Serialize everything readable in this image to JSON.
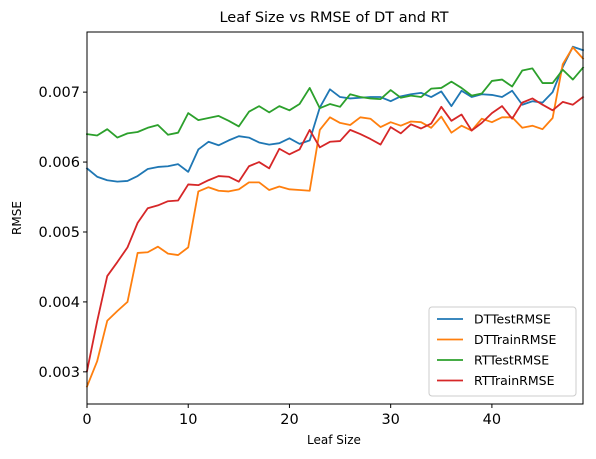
{
  "chart_data": {
    "type": "line",
    "title": "Leaf Size vs RMSE of DT and RT",
    "xlabel": "Leaf Size",
    "ylabel": "RMSE",
    "xlim": [
      0,
      49
    ],
    "ylim": [
      0.00254,
      0.00786
    ],
    "xticks": [
      0,
      10,
      20,
      30,
      40
    ],
    "yticks": [
      0.003,
      0.004,
      0.005,
      0.006,
      0.007
    ],
    "grid": false,
    "legend_position": "lower right",
    "series": [
      {
        "name": "DTTestRMSE",
        "color": "#1f77b4",
        "values": [
          0.00591,
          0.00579,
          0.00574,
          0.00572,
          0.00573,
          0.0058,
          0.0059,
          0.00593,
          0.00594,
          0.00597,
          0.00586,
          0.00618,
          0.00629,
          0.00624,
          0.00631,
          0.00637,
          0.00635,
          0.00628,
          0.00625,
          0.00627,
          0.00634,
          0.00626,
          0.00631,
          0.00678,
          0.00704,
          0.00693,
          0.00691,
          0.00692,
          0.00693,
          0.00693,
          0.00687,
          0.00694,
          0.00697,
          0.00699,
          0.00693,
          0.00701,
          0.0068,
          0.00702,
          0.00693,
          0.00697,
          0.00696,
          0.00693,
          0.00702,
          0.00682,
          0.00687,
          0.00685,
          0.007,
          0.00736,
          0.00765,
          0.0076
        ]
      },
      {
        "name": "DTTrainRMSE",
        "color": "#ff7f0e",
        "values": [
          0.00279,
          0.00315,
          0.00373,
          0.00387,
          0.004,
          0.0047,
          0.00471,
          0.00479,
          0.00469,
          0.00467,
          0.00478,
          0.00558,
          0.00564,
          0.00559,
          0.00558,
          0.00561,
          0.00571,
          0.00571,
          0.0056,
          0.00565,
          0.00561,
          0.0056,
          0.00559,
          0.00646,
          0.00664,
          0.00656,
          0.00653,
          0.00664,
          0.00662,
          0.0065,
          0.00657,
          0.00652,
          0.00658,
          0.00657,
          0.00649,
          0.00665,
          0.00642,
          0.00652,
          0.00645,
          0.00662,
          0.00657,
          0.00664,
          0.00664,
          0.00649,
          0.00652,
          0.00647,
          0.00663,
          0.0074,
          0.00764,
          0.00748
        ]
      },
      {
        "name": "RTTestRMSE",
        "color": "#2ca02c",
        "values": [
          0.0064,
          0.00638,
          0.00647,
          0.00635,
          0.00641,
          0.00643,
          0.00649,
          0.00653,
          0.00639,
          0.00642,
          0.0067,
          0.0066,
          0.00663,
          0.00666,
          0.00659,
          0.00651,
          0.00672,
          0.0068,
          0.00671,
          0.0068,
          0.00674,
          0.00683,
          0.00706,
          0.00677,
          0.00683,
          0.00679,
          0.00697,
          0.00693,
          0.00691,
          0.0069,
          0.00703,
          0.00692,
          0.00695,
          0.00693,
          0.00705,
          0.00706,
          0.00715,
          0.00706,
          0.00695,
          0.00698,
          0.00716,
          0.00718,
          0.00708,
          0.00731,
          0.00734,
          0.00713,
          0.00713,
          0.00732,
          0.00718,
          0.00735
        ]
      },
      {
        "name": "RTTrainRMSE",
        "color": "#d62728",
        "values": [
          0.00301,
          0.00372,
          0.00437,
          0.00457,
          0.00478,
          0.00513,
          0.00534,
          0.00538,
          0.00544,
          0.00545,
          0.00568,
          0.00567,
          0.00574,
          0.0058,
          0.00579,
          0.00572,
          0.00594,
          0.006,
          0.00591,
          0.00619,
          0.00611,
          0.00618,
          0.00646,
          0.00621,
          0.00629,
          0.0063,
          0.00646,
          0.0064,
          0.00633,
          0.00625,
          0.0065,
          0.00641,
          0.00654,
          0.00648,
          0.00655,
          0.00679,
          0.00659,
          0.00668,
          0.00645,
          0.00656,
          0.0067,
          0.0068,
          0.00662,
          0.00685,
          0.00691,
          0.00682,
          0.00674,
          0.00686,
          0.00682,
          0.00693
        ]
      }
    ]
  }
}
